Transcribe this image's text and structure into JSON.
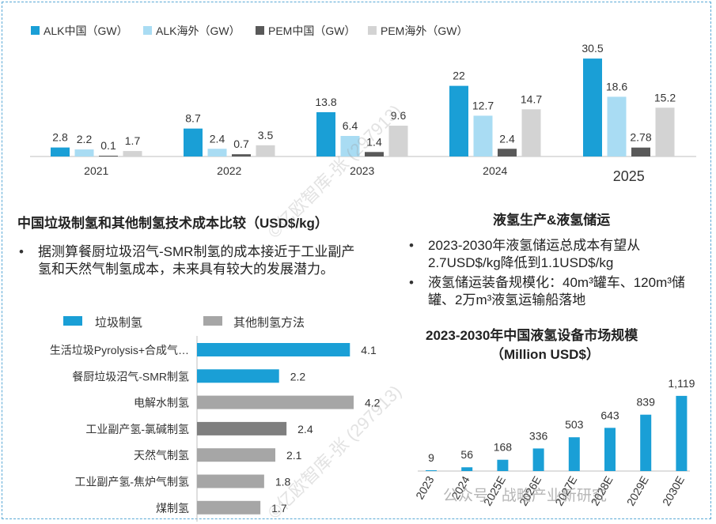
{
  "colors": {
    "alk_cn": "#1a9fd6",
    "alk_os": "#a9dcf3",
    "pem_cn": "#595959",
    "pem_os": "#d3d3d3",
    "waste": "#1a9fd6",
    "other": "#a6a6a6",
    "chlor": "#7f7f7f",
    "lh2": "#1a9fd6"
  },
  "chart_data": [
    {
      "type": "bar",
      "id": "electrolyzer",
      "categories": [
        "2021",
        "2022",
        "2023",
        "2024",
        "2025"
      ],
      "series": [
        {
          "name": "ALK中国（GW）",
          "values": [
            2.8,
            8.7,
            13.8,
            22,
            30.5
          ]
        },
        {
          "name": "ALK海外（GW）",
          "values": [
            2.2,
            2.4,
            6.4,
            12.7,
            18.6
          ]
        },
        {
          "name": "PEM中国（GW）",
          "values": [
            0.1,
            0.7,
            1.4,
            2.4,
            2.78
          ]
        },
        {
          "name": "PEM海外（GW）",
          "values": [
            1.7,
            3.5,
            9.6,
            14.7,
            15.2
          ]
        }
      ],
      "ylim": [
        0,
        32
      ]
    },
    {
      "type": "bar",
      "id": "cost",
      "orientation": "horizontal",
      "title": "中国垃圾制氢和其他制氢技术成本比较（USD$/kg）",
      "legend": [
        "垃圾制氢",
        "其他制氢方法"
      ],
      "categories": [
        "生活垃圾Pyrolysis+合成气…",
        "餐厨垃圾沼气-SMR制氢",
        "电解水制氢",
        "工业副产氢-氯碱制氢",
        "天然气制氢",
        "工业副产氢-焦炉气制氢",
        "煤制氢"
      ],
      "values": [
        4.1,
        2.2,
        4.2,
        2.4,
        2.1,
        1.8,
        1.7
      ],
      "xlim": [
        0,
        4.5
      ]
    },
    {
      "type": "bar",
      "id": "lh2_market",
      "title": "2023-2030年中国液氢设备市场规模（Million USD$）",
      "categories": [
        "2023",
        "2024",
        "2025E",
        "2026E",
        "2027E",
        "2028E",
        "2029E",
        "2030E"
      ],
      "values": [
        9,
        56,
        168,
        336,
        503,
        643,
        839,
        1119
      ],
      "value_labels": [
        "9",
        "56",
        "168",
        "336",
        "503",
        "643",
        "839",
        "1,119"
      ],
      "ylim": [
        0,
        1200
      ]
    }
  ],
  "cost_section": {
    "title": "中国垃圾制氢和其他制氢技术成本比较（USD$/kg）",
    "bullet": "据测算餐厨垃圾沼气-SMR制氢的成本接近于工业副产氢和天然气制氢成本，未来具有较大的发展潜力。",
    "legend_waste": "垃圾制氢",
    "legend_other": "其他制氢方法"
  },
  "lh2_section": {
    "title": "液氢生产&液氢储运",
    "bullets": [
      "2023-2030年液氢储运总成本有望从2.7USD$/kg降低到1.1USD$/kg",
      "液氢储运装备规模化：40m³罐车、120m³储罐、2万m³液氢运输船落地"
    ],
    "chart_title_line1": "2023-2030年中国液氢设备市场规模",
    "chart_title_line2": "（Million USD$）"
  },
  "watermark": {
    "text": "©亿欧智库-张 (297913)",
    "footer": "公众号 · 战略产业新研究"
  }
}
